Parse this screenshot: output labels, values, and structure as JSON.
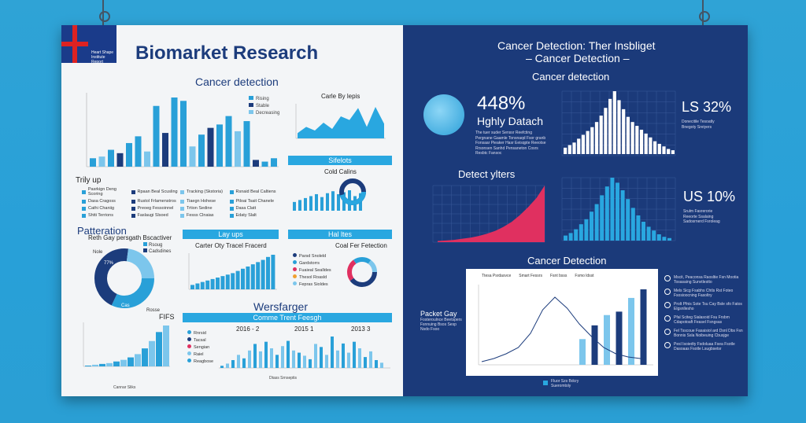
{
  "left": {
    "title": "Biomarket Research",
    "flag_caption": "Heart Shape Institute Report",
    "cancer_detection": "Cancer detection",
    "legend_main": [
      "Rising",
      "Stable",
      "Decreasing"
    ],
    "top_right_chart_title": "Carle By lepis",
    "banner_1": "Sifelots",
    "cold_title": "Cold Calins",
    "trily_label": "Trily up",
    "trily_items": [
      "Pasrkign Deng Scoring",
      "Rpaan Beal Scusling",
      "Tracking (Skstoria)",
      "Rsnaid Beal Caltiens",
      "Dasa Cragoss",
      "Rustol Frlamenstros",
      "Tiaegn Hohese",
      "Ptloai Tsait Chanele",
      "Cathi Chaniig",
      "Preoeg Fessoinnel",
      "Trtion Sedine",
      "Dasa Clatt",
      "Shtti Terrions",
      "Faslaugi Slsoed",
      "Fesss Clnaias",
      "Edaty Slalt"
    ],
    "patteration_title": "Patteration",
    "patteration_sub": "Reth Gay persgath Bscactiver",
    "donut_legend": [
      "Rsoug",
      "Cadsdines"
    ],
    "donut_labels": [
      "Nole",
      "77%",
      "Cas",
      "Rosse"
    ],
    "banner_2": "Lay ups",
    "banner_3": "Hal ltes",
    "carter_title": "Carter Oty Tracel Fracerd",
    "coal_title": "Coal Fer Fetection",
    "coal_legend": [
      "Parsd Snoleld",
      "Gardstorrs",
      "Fuaieal Sealldes",
      "Thesol Roasld",
      "Fepras Sioldes"
    ],
    "fifs_label": "FIFS",
    "fifs_xlabel": "Cannar Sliks",
    "wersfarger": "Wersfarger",
    "comme_banner": "Comme Trent Feesgh",
    "bottom_years": [
      "2016 - 2",
      "2015 1",
      "2013 3"
    ],
    "bottom_legend": [
      "Rnrsid",
      "Tacsal",
      "Sengian",
      "Raiel",
      "Reagbose"
    ],
    "bottom_xlabel": "Dtass Srnseptis"
  },
  "right": {
    "title_line1": "Cancer Detection: Ther Insbliget",
    "title_line2": "– Cancer Detection –",
    "cancer_detection": "Cancer detection",
    "big_pct": "448%",
    "big_sub": "Hghly Datach",
    "big_desc": "The tuer suder Senssr Reefcting Pergnane Gaamle Tonsnaqd Fsor granb Fonsaar Pieaker Hasr Eeisqpte Reeotse Rrsonsen Sanhd Pensaneton Cosrs Resbtc Fansoc",
    "pct_32": "LS 32%",
    "pct_32_desc": "Donecitile Tesoatly Bnegoty Sreiyers",
    "detect_title": "Detect ylters",
    "pct_10": "US 10%",
    "pct_10_desc": "Srulm Fasrerorie Reeorte Ssalaing Sadosrnerd Fsroleag",
    "detection_title": "Cancer Detection",
    "lower_legend": [
      "Ttesa Psrdasvce",
      "Smart Fessrs",
      "Fsnt bsss",
      "Fsmo ldsst"
    ],
    "packet_title": "Packet Gay",
    "packet_desc": "Fosteroulnce Beetspers Fsnnuing Bsos Sesp Nsdo Fsoo",
    "side_notes": [
      "Mscit, Peaconsa Raosltie Fsn Mootia Tosasaing Sunvtlestto",
      "Mels Sicg Fsabhs Chtls Rst Foteo Fsosioocning Fasoltry",
      "Prolt Pfnis Sote Tsu Cay Bsle sfo Fatos Elgsnllesho",
      "Pfal Sciteg Sialasoid Fsu Frsbm Cdapotoaft Feasel Fsngsas",
      "Fel Tsscoue Fasaisiol ard Dsnl Dbs Fsn Bonnis Ssla Noibeuing Cbusjge",
      "Pesl Isoiedty Fsdoluaa Fsea Fsotle Dasoaas Fsotle Lsugbsetsr"
    ],
    "footer_label": "Fluor Szs Bdcry Sueromtoly"
  },
  "chart_data": [
    {
      "type": "bar",
      "title": "Cancer detection",
      "series": [
        {
          "name": "Rising"
        },
        {
          "name": "Stable"
        },
        {
          "name": "Decreasing"
        }
      ],
      "values": [
        10,
        12,
        20,
        16,
        28,
        36,
        18,
        72,
        40,
        82,
        78,
        24,
        38,
        46,
        50,
        60,
        42,
        54,
        8,
        6,
        10
      ],
      "ylim": [
        0,
        100
      ]
    },
    {
      "type": "area",
      "title": "Carle By lepis",
      "values": [
        10,
        22,
        15,
        30,
        18,
        42,
        35,
        58,
        22,
        60,
        28
      ]
    },
    {
      "type": "bar",
      "title": "Cold Calins",
      "values": [
        18,
        22,
        26,
        30,
        34,
        28,
        36,
        40,
        34,
        38,
        42,
        30,
        36
      ]
    },
    {
      "type": "pie",
      "title": "Patteration",
      "values": [
        32,
        45,
        23
      ]
    },
    {
      "type": "area",
      "title": "FIFS",
      "values": [
        2,
        4,
        6,
        8,
        12,
        16,
        22,
        30,
        44,
        62,
        84,
        100
      ]
    },
    {
      "type": "bar",
      "title": "Carter Oty Tracel Fracerd",
      "values": [
        12,
        16,
        20,
        24,
        28,
        32,
        36,
        40,
        44,
        50,
        56,
        62,
        68,
        74,
        80,
        88,
        94
      ]
    },
    {
      "type": "pie",
      "title": "Coal Fer Fetection",
      "values": [
        40,
        25,
        20,
        15
      ]
    },
    {
      "type": "bar",
      "title": "Comme Trent Feesgh",
      "values": [
        5,
        10,
        18,
        30,
        22,
        40,
        55,
        38,
        60,
        45,
        30,
        50,
        62,
        40,
        35,
        28,
        20,
        55,
        48,
        30,
        72,
        40,
        56,
        35,
        60,
        45,
        25,
        38,
        18,
        12
      ]
    },
    {
      "type": "bar",
      "title": "Cancer detection",
      "values": [
        10,
        14,
        18,
        24,
        30,
        36,
        42,
        50,
        60,
        72,
        86,
        98,
        84,
        70,
        58,
        50,
        44,
        38,
        32,
        26,
        20,
        16,
        12,
        8,
        6
      ]
    },
    {
      "type": "area",
      "title": "Detect ylters",
      "values": [
        2,
        3,
        4,
        6,
        8,
        11,
        15,
        20,
        27,
        36,
        48,
        62,
        78,
        100
      ]
    },
    {
      "type": "bar",
      "values": [
        8,
        12,
        18,
        26,
        34,
        46,
        58,
        72,
        86,
        100,
        92,
        80,
        66,
        52,
        40,
        30,
        22,
        16,
        10,
        6,
        4
      ]
    },
    {
      "type": "bar",
      "title": "Cancer Detection",
      "values": [
        4,
        6,
        8,
        10,
        9,
        12,
        14,
        22,
        30,
        46,
        58,
        62,
        78,
        88
      ]
    }
  ]
}
